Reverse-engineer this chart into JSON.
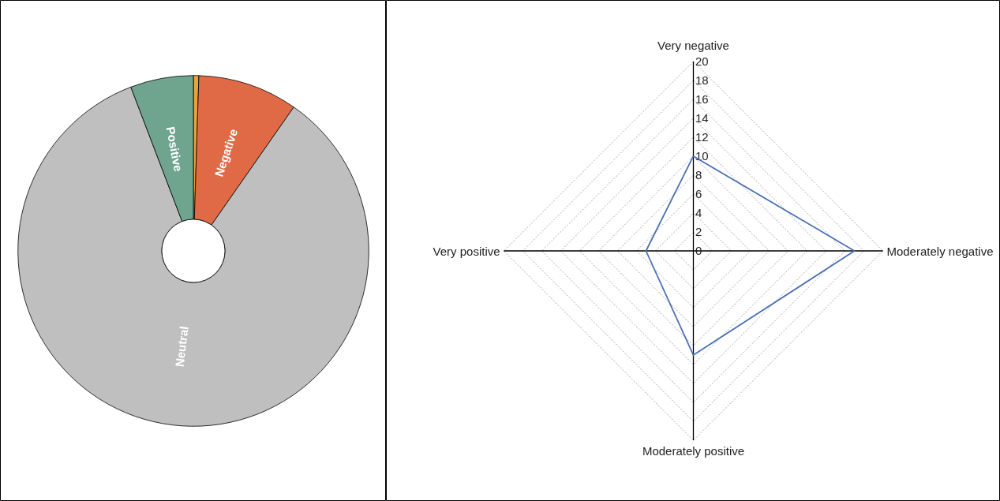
{
  "chart_data": [
    {
      "type": "donut",
      "categories": [
        null,
        "Negative",
        "Neutral",
        "Positive"
      ],
      "values": [
        0.5,
        9.2,
        84.5,
        5.8
      ],
      "colors": [
        "#e8a33a",
        "#e06a45",
        "#bfbfbf",
        "#6fa58f"
      ]
    },
    {
      "type": "radar",
      "categories": [
        "Very negative",
        "Moderately negative",
        "Moderately positive",
        "Very positive"
      ],
      "ylim": [
        0,
        20
      ],
      "yticks": [
        0,
        2,
        4,
        6,
        8,
        10,
        12,
        14,
        16,
        18,
        20
      ],
      "grid": true,
      "series": [
        {
          "color": "#4a6fb5",
          "values": [
            10,
            17,
            11,
            5
          ]
        }
      ]
    }
  ]
}
